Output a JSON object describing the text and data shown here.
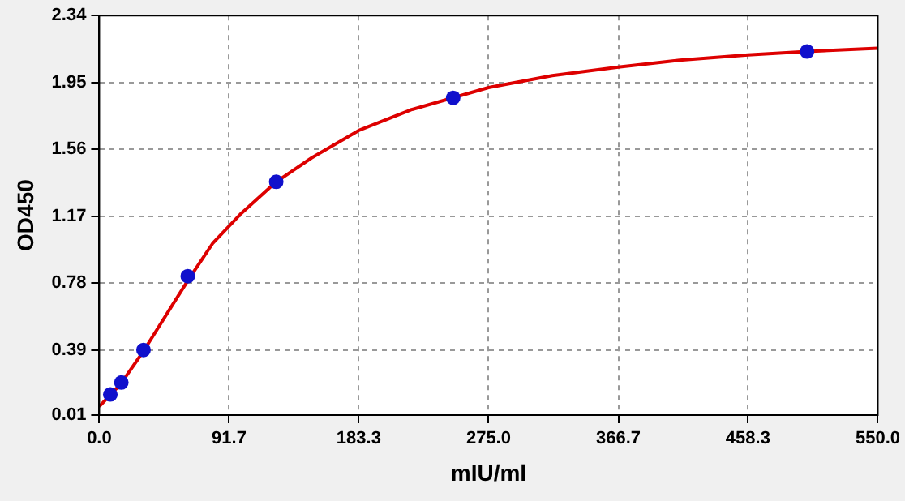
{
  "chart_data": {
    "type": "scatter",
    "xlabel": "mIU/ml",
    "ylabel": "OD450",
    "xlim": [
      0,
      550
    ],
    "ylim": [
      0.01,
      2.34
    ],
    "xticks": [
      {
        "value": 0,
        "label": "0.0"
      },
      91.7,
      183.3,
      {
        "value": 275,
        "label": "275.0"
      },
      366.7,
      458.3,
      {
        "value": 550,
        "label": "550.0"
      }
    ],
    "yticks": [
      0.01,
      0.39,
      0.78,
      1.17,
      1.56,
      1.95,
      2.34
    ],
    "grid": true,
    "legend": false,
    "series": [
      {
        "type": "line",
        "color": "#dd0000",
        "marker": "none",
        "line_style": "solid",
        "x": [
          0,
          15,
          31,
          50,
          63,
          80,
          99.5,
          125,
          150,
          183.3,
          220,
          275,
          320,
          366.7,
          410,
          458.3,
          500,
          550
        ],
        "values": [
          0.06,
          0.19,
          0.38,
          0.63,
          0.8,
          1.01,
          1.18,
          1.37,
          1.51,
          1.67,
          1.79,
          1.92,
          1.99,
          2.04,
          2.08,
          2.11,
          2.13,
          2.15
        ]
      },
      {
        "type": "scatter",
        "color": "#1010cc",
        "marker": "circle",
        "x": [
          7.8,
          15.6,
          31.25,
          62.5,
          125,
          250,
          500
        ],
        "values": [
          0.13,
          0.2,
          0.39,
          0.82,
          1.37,
          1.86,
          2.13
        ]
      }
    ]
  }
}
